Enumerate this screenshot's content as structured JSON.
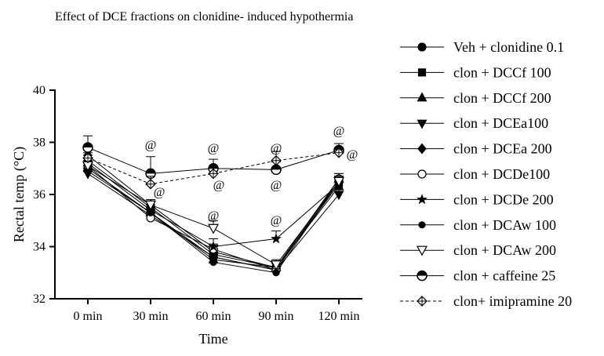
{
  "chart_data": {
    "type": "line",
    "title": "Effect of DCE fractions on clonidine- induced hypothermia",
    "x_label": "Time",
    "y_label": "Rectal temp (°C)",
    "categories": [
      "0 min",
      "30 min",
      "60 min",
      "90 min",
      "120 min"
    ],
    "ylim": [
      32,
      40
    ],
    "yticks": [
      32,
      34,
      36,
      38,
      40
    ],
    "series": [
      {
        "name": "Veh + clonidine 0.1",
        "color": "#000000",
        "marker": "circle",
        "values": [
          37.0,
          35.3,
          33.6,
          33.1,
          36.5
        ],
        "errors": [
          0.2,
          0.2,
          0.2,
          0.15,
          0.2
        ]
      },
      {
        "name": "clon + DCCf 100",
        "color": "#000000",
        "marker": "square",
        "values": [
          37.3,
          35.5,
          33.7,
          33.2,
          36.4
        ],
        "errors": [
          0.2,
          0.2,
          0.2,
          0.15,
          0.2
        ]
      },
      {
        "name": "clon + DCCf 200",
        "color": "#000000",
        "marker": "triangle",
        "values": [
          37.0,
          35.3,
          33.5,
          33.2,
          36.3
        ],
        "errors": [
          0.2,
          0.2,
          0.2,
          0.15,
          0.2
        ]
      },
      {
        "name": "clon + DCEa100",
        "color": "#000000",
        "marker": "triangle-down",
        "values": [
          36.8,
          35.2,
          33.6,
          33.1,
          36.0
        ],
        "errors": [
          0.2,
          0.2,
          0.2,
          0.15,
          0.2
        ]
      },
      {
        "name": "clon + DCEa 200",
        "color": "#000000",
        "marker": "diamond",
        "values": [
          37.5,
          35.6,
          33.8,
          33.2,
          36.6
        ],
        "errors": [
          0.2,
          0.2,
          0.2,
          0.15,
          0.2
        ]
      },
      {
        "name": "clon + DCDe100",
        "color": "#000000",
        "marker": "open-circle",
        "values": [
          37.1,
          35.1,
          33.9,
          33.1,
          36.6
        ],
        "errors": [
          0.2,
          0.2,
          0.2,
          0.15,
          0.2
        ]
      },
      {
        "name": "clon + DCDe 200",
        "color": "#000000",
        "marker": "star",
        "values": [
          37.2,
          35.4,
          34.0,
          34.3,
          36.4
        ],
        "errors": [
          0.2,
          0.2,
          0.3,
          0.3,
          0.2
        ]
      },
      {
        "name": "clon + DCAw 100",
        "color": "#000000",
        "marker": "small-circle",
        "values": [
          36.9,
          35.3,
          33.4,
          33.0,
          36.5
        ],
        "errors": [
          0.2,
          0.2,
          0.2,
          0.15,
          0.2
        ]
      },
      {
        "name": "clon + DCAw 200",
        "color": "#000000",
        "marker": "open-triangle-down",
        "values": [
          37.1,
          35.6,
          34.7,
          33.3,
          36.5
        ],
        "errors": [
          0.2,
          0.2,
          0.3,
          0.2,
          0.2
        ]
      },
      {
        "name": "clon + caffeine 25",
        "color": "#000000",
        "marker": "half-circle",
        "values": [
          37.8,
          36.8,
          37.0,
          36.95,
          37.7
        ],
        "errors": [
          0.45,
          0.65,
          0.35,
          0.3,
          0.25
        ]
      },
      {
        "name": "clon+ imipramine 20",
        "color": "#000000",
        "marker": "open-diamond",
        "dash": true,
        "values": [
          37.4,
          36.4,
          36.8,
          37.3,
          37.6
        ],
        "errors": [
          0.2,
          0.3,
          0.2,
          0.35,
          0.2
        ]
      }
    ],
    "annotations": [
      "@",
      "@",
      "@",
      "@",
      "@",
      "@",
      "@",
      "@",
      "@",
      "@"
    ]
  }
}
